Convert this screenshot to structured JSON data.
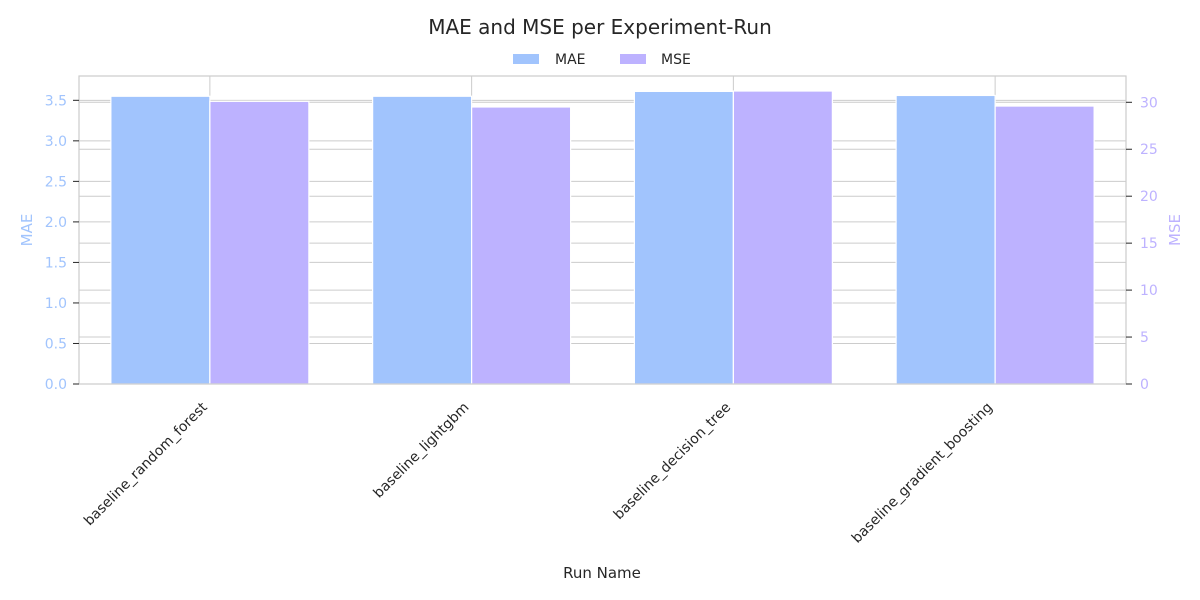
{
  "chart_data": {
    "type": "bar",
    "title": "MAE and MSE per Experiment-Run",
    "xlabel": "Run Name",
    "categories": [
      "baseline_random_forest",
      "baseline_lightgbm",
      "baseline_decision_tree",
      "baseline_gradient_boosting"
    ],
    "series": [
      {
        "name": "MAE",
        "axis": "left",
        "color": "#a1c4fd",
        "values": [
          3.55,
          3.55,
          3.61,
          3.56
        ]
      },
      {
        "name": "MSE",
        "axis": "right",
        "color": "#bdb2ff",
        "values": [
          30.1,
          29.5,
          31.2,
          29.6
        ]
      }
    ],
    "left_axis": {
      "label": "MAE",
      "ylim": [
        0,
        3.8
      ],
      "ticks": [
        "0.0",
        "0.5",
        "1.0",
        "1.5",
        "2.0",
        "2.5",
        "3.0",
        "3.5"
      ],
      "color": "#a1c4fd"
    },
    "right_axis": {
      "label": "MSE",
      "ylim": [
        0,
        32.8
      ],
      "ticks": [
        "0",
        "5",
        "10",
        "15",
        "20",
        "25",
        "30"
      ],
      "color": "#bdb2ff"
    },
    "legend_position": "top-center",
    "grid": true
  }
}
